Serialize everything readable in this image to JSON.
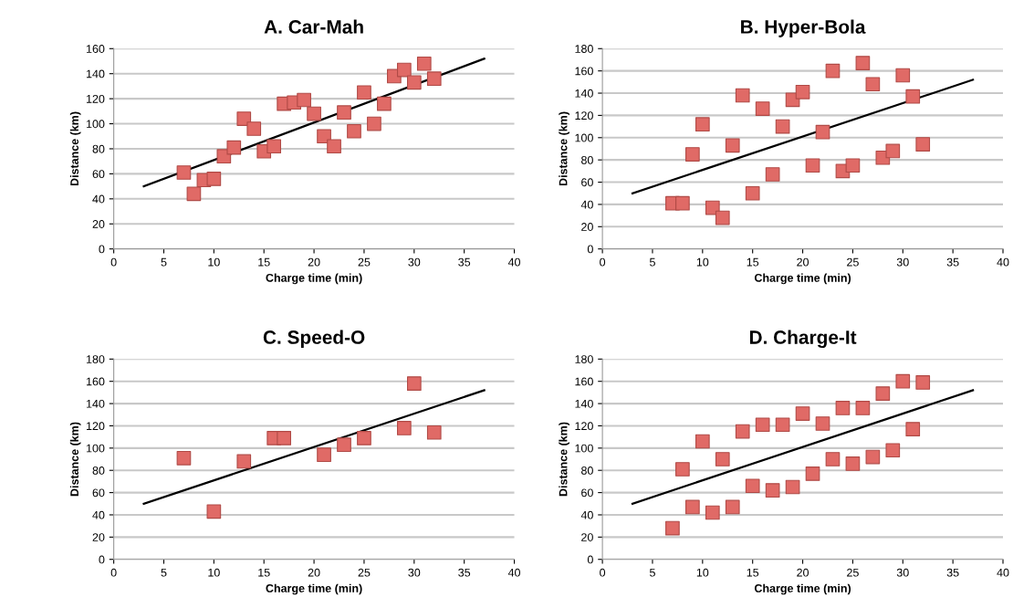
{
  "chart_data": [
    {
      "type": "scatter",
      "title": "A. Car-Mah",
      "xlabel": "Charge time (min)",
      "ylabel": "Distance (km)",
      "xlim": [
        0,
        40
      ],
      "xticks": [
        0,
        5,
        10,
        15,
        20,
        25,
        30,
        35,
        40
      ],
      "ylim": [
        0,
        160
      ],
      "yticks": [
        0,
        20,
        40,
        60,
        80,
        100,
        120,
        140,
        160
      ],
      "grid": "y",
      "series": [
        {
          "marker": "square",
          "color": "#e06a66",
          "x": [
            7,
            8,
            9,
            10,
            11,
            12,
            13,
            14,
            15,
            16,
            17,
            18,
            19,
            20,
            21,
            22,
            23,
            24,
            25,
            26,
            27,
            28,
            29,
            30,
            31,
            32
          ],
          "values": [
            61,
            44,
            55,
            56,
            74,
            81,
            104,
            96,
            78,
            82,
            116,
            117,
            119,
            108,
            90,
            82,
            109,
            94,
            125,
            100,
            116,
            138,
            143,
            133,
            148,
            136
          ]
        },
        {
          "type": "line",
          "marker": "none",
          "line_style": "solid",
          "color": "#000000",
          "x": [
            3,
            37
          ],
          "values": [
            50,
            152
          ]
        }
      ]
    },
    {
      "type": "scatter",
      "title": "B. Hyper-Bola",
      "xlabel": "Charge time (min)",
      "ylabel": "Distance (km)",
      "xlim": [
        0,
        40
      ],
      "xticks": [
        0,
        5,
        10,
        15,
        20,
        25,
        30,
        35,
        40
      ],
      "ylim": [
        0,
        180
      ],
      "yticks": [
        0,
        20,
        40,
        60,
        80,
        100,
        120,
        140,
        160,
        180
      ],
      "grid": "y",
      "series": [
        {
          "marker": "square",
          "color": "#e06a66",
          "x": [
            7,
            8,
            9,
            10,
            11,
            12,
            13,
            14,
            15,
            16,
            17,
            18,
            19,
            20,
            21,
            22,
            23,
            24,
            25,
            26,
            27,
            28,
            29,
            30,
            31,
            32
          ],
          "values": [
            41,
            41,
            85,
            112,
            37,
            28,
            93,
            138,
            50,
            126,
            67,
            110,
            134,
            141,
            75,
            105,
            160,
            70,
            75,
            167,
            148,
            82,
            88,
            156,
            137,
            94
          ]
        },
        {
          "type": "line",
          "marker": "none",
          "line_style": "solid",
          "color": "#000000",
          "x": [
            3,
            37
          ],
          "values": [
            50,
            152
          ]
        }
      ]
    },
    {
      "type": "scatter",
      "title": "C. Speed-O",
      "xlabel": "Charge time (min)",
      "ylabel": "Distance (km)",
      "xlim": [
        0,
        40
      ],
      "xticks": [
        0,
        5,
        10,
        15,
        20,
        25,
        30,
        35,
        40
      ],
      "ylim": [
        0,
        180
      ],
      "yticks": [
        0,
        20,
        40,
        60,
        80,
        100,
        120,
        140,
        160,
        180
      ],
      "grid": "y",
      "series": [
        {
          "marker": "square",
          "color": "#e06a66",
          "x": [
            7,
            10,
            13,
            16,
            17,
            21,
            23,
            25,
            29,
            30,
            32
          ],
          "values": [
            91,
            43,
            88,
            109,
            109,
            94,
            103,
            109,
            118,
            158,
            114
          ]
        },
        {
          "type": "line",
          "marker": "none",
          "line_style": "solid",
          "color": "#000000",
          "x": [
            3,
            37
          ],
          "values": [
            50,
            152
          ]
        }
      ]
    },
    {
      "type": "scatter",
      "title": "D. Charge-It",
      "xlabel": "Charge time (min)",
      "ylabel": "Distance (km)",
      "xlim": [
        0,
        40
      ],
      "xticks": [
        0,
        5,
        10,
        15,
        20,
        25,
        30,
        35,
        40
      ],
      "ylim": [
        0,
        180
      ],
      "yticks": [
        0,
        20,
        40,
        60,
        80,
        100,
        120,
        140,
        160,
        180
      ],
      "grid": "y",
      "series": [
        {
          "marker": "square",
          "color": "#e06a66",
          "x": [
            7,
            8,
            9,
            10,
            11,
            12,
            13,
            14,
            15,
            16,
            17,
            18,
            19,
            20,
            21,
            22,
            23,
            24,
            25,
            26,
            27,
            28,
            29,
            30,
            31,
            32
          ],
          "values": [
            28,
            81,
            47,
            106,
            42,
            90,
            47,
            115,
            66,
            121,
            62,
            121,
            65,
            131,
            77,
            122,
            90,
            136,
            86,
            136,
            92,
            149,
            98,
            160,
            117,
            159
          ]
        },
        {
          "type": "line",
          "marker": "none",
          "line_style": "solid",
          "color": "#000000",
          "x": [
            3,
            37
          ],
          "values": [
            50,
            152
          ]
        }
      ]
    }
  ]
}
